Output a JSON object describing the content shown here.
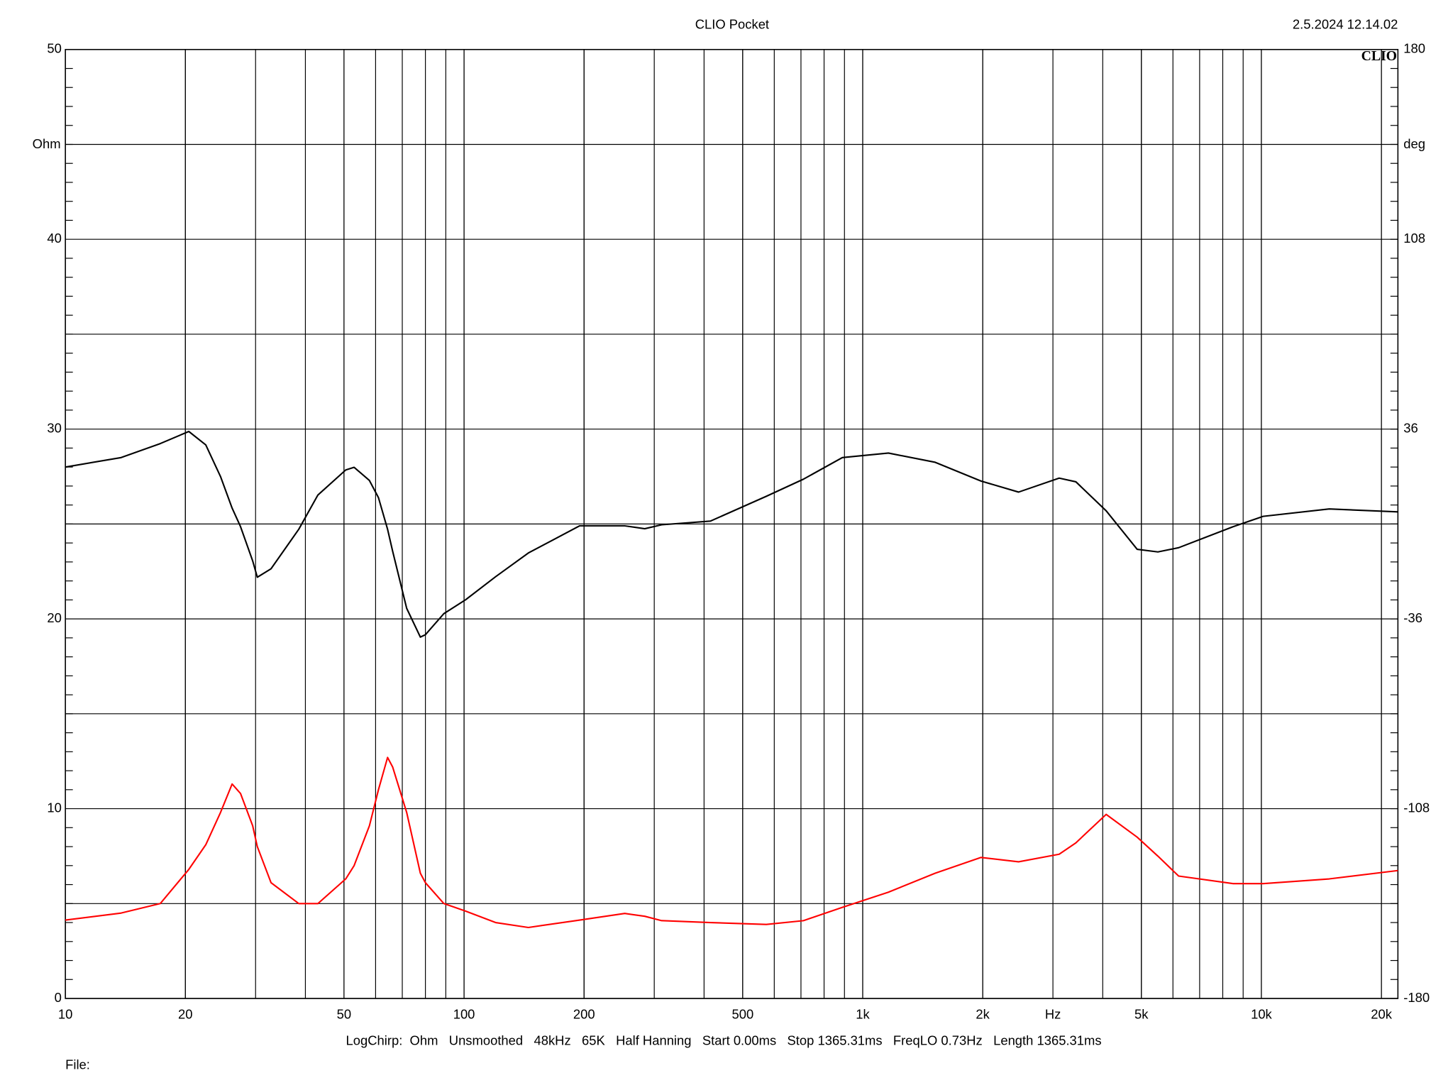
{
  "chart_data": {
    "type": "line",
    "title": "CLIO Pocket",
    "timestamp": "2.5.2024 12.14.02",
    "logo": "CLIO",
    "y_label": "Ohm",
    "y2_label": "deg",
    "x_label": "Hz",
    "footer": "LogChirp:  Ohm   Unsmoothed   48kHz   65K   Half Hanning   Start 0.00ms   Stop 1365.31ms   FreqLO 0.73Hz   Length 1365.31ms",
    "file_label": "File:",
    "log_x": true,
    "grid": true,
    "xlim": [
      10,
      22000
    ],
    "xticks": [
      10,
      20,
      50,
      100,
      200,
      500,
      {
        "value": 1000,
        "label": "1k"
      },
      {
        "value": 2000,
        "label": "2k"
      },
      {
        "value": 5000,
        "label": "5k"
      },
      {
        "value": 10000,
        "label": "10k"
      },
      {
        "value": 20000,
        "label": "20k"
      }
    ],
    "ylim": [
      0,
      50
    ],
    "yticks": [
      0,
      10,
      20,
      30,
      40,
      50
    ],
    "y2lim": [
      -180,
      180
    ],
    "y2ticks": [
      -180,
      -108,
      -36,
      36,
      108,
      180
    ],
    "x": [
      10,
      13.8,
      17.3,
      20.4,
      22.5,
      24.5,
      26.2,
      27.5,
      29.5,
      30.3,
      32.8,
      38.5,
      43,
      50.5,
      53,
      57.9,
      61,
      64.3,
      66.2,
      71.8,
      77.7,
      80,
      89,
      101,
      120,
      145,
      195,
      253,
      284,
      313,
      415,
      573,
      710,
      889,
      1160,
      1520,
      1980,
      2460,
      3110,
      3425,
      4080,
      4880,
      5500,
      6200,
      8500,
      10100,
      14800,
      22000
    ],
    "series": [
      {
        "name": "Ohm",
        "color": "#ff0000",
        "axis": "y",
        "values": [
          4.13,
          4.5,
          5.0,
          6.8,
          8.1,
          9.8,
          11.3,
          10.8,
          9.1,
          8.0,
          6.1,
          5.0,
          5.0,
          6.3,
          7.0,
          9.1,
          11.0,
          12.7,
          12.2,
          9.8,
          6.6,
          6.1,
          5.0,
          4.6,
          4.0,
          3.74,
          4.13,
          4.48,
          4.33,
          4.1,
          4.0,
          3.9,
          4.1,
          4.8,
          5.6,
          6.6,
          7.43,
          7.2,
          7.6,
          8.2,
          9.7,
          8.5,
          7.5,
          6.45,
          6.05,
          6.05,
          6.3,
          6.74
        ]
      },
      {
        "name": "deg",
        "color": "#000000",
        "axis": "y2",
        "values": [
          21.6,
          25.2,
          30.5,
          35.1,
          30,
          18,
          6,
          -1,
          -14,
          -20.2,
          -17,
          -2,
          11.0,
          20.5,
          21.5,
          16.5,
          10,
          -2,
          -10.3,
          -32,
          -42.9,
          -42,
          -34,
          -28.7,
          -20,
          -11,
          -0.7,
          -0.7,
          -1.8,
          -0.3,
          1.1,
          10.5,
          17,
          25.2,
          26.9,
          23.4,
          16.3,
          12.1,
          17.4,
          16,
          5,
          -9.6,
          -10.6,
          -9,
          -1,
          2.9,
          5.7,
          4.6
        ]
      }
    ]
  }
}
